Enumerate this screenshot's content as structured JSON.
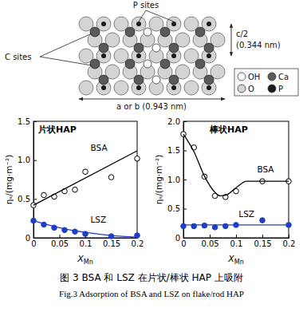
{
  "diagram": {
    "labels": {
      "p_sites": "P sites",
      "c_sites": "C sites",
      "c_half": "c/2",
      "c_half_value": "(0.344 nm)",
      "a_or_b": "a or b (0.943 nm)"
    },
    "legend": [
      {
        "label": "OH",
        "color": "#ffffff"
      },
      {
        "label": "Ca",
        "color": "#5a5a5a"
      },
      {
        "label": "O",
        "color": "#d4d4d4"
      },
      {
        "label": "P",
        "color": "#1a1a1a"
      }
    ]
  },
  "chart_data": [
    {
      "type": "scatter",
      "title": "片状HAP",
      "xlabel": "XMn",
      "ylabel": "ηₛ/(mg·m⁻²)",
      "xlim": [
        0,
        0.2
      ],
      "xticks": [
        0,
        0.05,
        0.1,
        0.15,
        0.2
      ],
      "ylim": [
        0,
        1.5
      ],
      "yticks": [
        0,
        0.5,
        {
          "value": 1,
          "label": "1.0"
        },
        1.5
      ],
      "grid": false,
      "series": [
        {
          "type": "scatter",
          "marker": "circle-open",
          "color": "#000000",
          "x": [
            0,
            0.02,
            0.04,
            0.06,
            0.08,
            0.1,
            0.15,
            0.2
          ],
          "values": [
            0.42,
            0.55,
            0.53,
            0.6,
            0.62,
            0.85,
            0.78,
            1.02
          ]
        },
        {
          "type": "line",
          "line_style": "solid",
          "color": "#000000",
          "x": [
            0,
            0.2
          ],
          "values": [
            0.42,
            1.12
          ]
        },
        {
          "type": "scatter",
          "marker": "circle",
          "color": "#1f3fc4",
          "x": [
            0,
            0.02,
            0.04,
            0.06,
            0.08,
            0.1,
            0.15,
            0.2
          ],
          "values": [
            0.22,
            0.17,
            0.13,
            0.1,
            0.08,
            0.05,
            0.02,
            0.03
          ]
        },
        {
          "type": "line",
          "line_style": "solid",
          "color": "#1f3fc4",
          "x": [
            0,
            0.05,
            0.1,
            0.15,
            0.2
          ],
          "values": [
            0.22,
            0.13,
            0.07,
            0.03,
            0.01
          ]
        }
      ],
      "annotations": [
        {
          "text": "BSA",
          "x": 0.11,
          "y": 1.12
        },
        {
          "text": "LSZ",
          "x": 0.11,
          "y": 0.2
        }
      ]
    },
    {
      "type": "scatter",
      "title": "棒状HAP",
      "xlabel": "XMn",
      "ylabel": "ηₛ/(mg·m⁻²)",
      "xlim": [
        0,
        0.2
      ],
      "xticks": [
        0,
        0.05,
        0.1,
        0.15,
        0.2
      ],
      "ylim": [
        0,
        2
      ],
      "yticks": [
        0,
        0.5,
        {
          "value": 1,
          "label": "1.0"
        },
        1.5,
        {
          "value": 2,
          "label": "2.0"
        }
      ],
      "grid": false,
      "series": [
        {
          "type": "scatter",
          "marker": "circle-open",
          "color": "#000000",
          "x": [
            0,
            0.02,
            0.04,
            0.06,
            0.08,
            0.1,
            0.15,
            0.2
          ],
          "values": [
            1.78,
            1.55,
            1.05,
            0.72,
            0.7,
            0.8,
            0.97,
            0.97
          ]
        },
        {
          "type": "line",
          "line_style": "solid",
          "color": "#000000",
          "x": [
            0,
            0.02,
            0.04,
            0.06,
            0.07,
            0.08,
            0.1,
            0.12,
            0.15,
            0.2
          ],
          "values": [
            1.78,
            1.48,
            1.06,
            0.78,
            0.72,
            0.73,
            0.86,
            0.97,
            0.97,
            0.97
          ]
        },
        {
          "type": "scatter",
          "marker": "circle",
          "color": "#1f3fc4",
          "x": [
            0,
            0.02,
            0.04,
            0.06,
            0.08,
            0.1,
            0.15,
            0.2
          ],
          "values": [
            0.2,
            0.2,
            0.21,
            0.18,
            0.2,
            0.22,
            0.3,
            0.22
          ]
        },
        {
          "type": "line",
          "line_style": "solid",
          "color": "#1f3fc4",
          "x": [
            0,
            0.2
          ],
          "values": [
            0.22,
            0.22
          ]
        }
      ],
      "annotations": [
        {
          "text": "BSA",
          "x": 0.14,
          "y": 1.12
        },
        {
          "text": "LSZ",
          "x": 0.105,
          "y": 0.36
        }
      ]
    }
  ],
  "caption": {
    "zh": "图 3  BSA 和 LSZ 在片状/棒状 HAP 上吸附",
    "en": "Fig.3  Adsorption of BSA and LSZ on flake/rod HAP"
  }
}
